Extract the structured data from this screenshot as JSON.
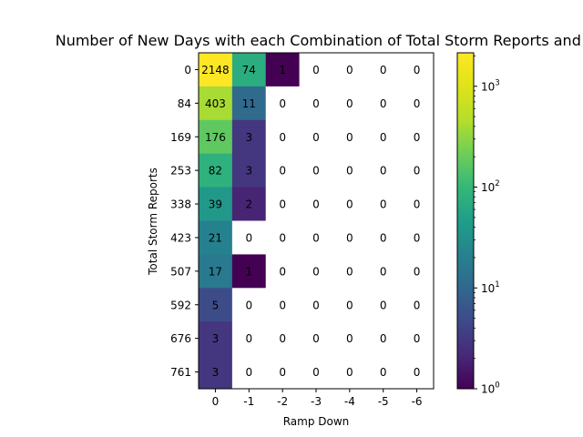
{
  "chart_data": {
    "type": "heatmap",
    "title": "Number of New Days with each Combination of Total Storm Reports and Ramp",
    "xlabel": "Ramp Down",
    "ylabel": "Total Storm Reports",
    "x_categories": [
      "0",
      "-1",
      "-2",
      "-3",
      "-4",
      "-5",
      "-6"
    ],
    "y_categories": [
      "0",
      "84",
      "169",
      "253",
      "338",
      "423",
      "507",
      "592",
      "676",
      "761"
    ],
    "values": [
      [
        2148,
        74,
        1,
        0,
        0,
        0,
        0
      ],
      [
        403,
        11,
        0,
        0,
        0,
        0,
        0
      ],
      [
        176,
        3,
        0,
        0,
        0,
        0,
        0
      ],
      [
        82,
        3,
        0,
        0,
        0,
        0,
        0
      ],
      [
        39,
        2,
        0,
        0,
        0,
        0,
        0
      ],
      [
        21,
        0,
        0,
        0,
        0,
        0,
        0
      ],
      [
        17,
        1,
        0,
        0,
        0,
        0,
        0
      ],
      [
        5,
        0,
        0,
        0,
        0,
        0,
        0
      ],
      [
        3,
        0,
        0,
        0,
        0,
        0,
        0
      ],
      [
        3,
        0,
        0,
        0,
        0,
        0,
        0
      ]
    ],
    "colorbar": {
      "scale": "log",
      "colormap": "viridis",
      "range": [
        1,
        2148
      ],
      "tick_values": [
        1,
        10,
        100,
        1000
      ],
      "tick_labels": [
        "10",
        "10",
        "10",
        "10"
      ],
      "tick_exponents": [
        "0",
        "1",
        "2",
        "3"
      ]
    },
    "zero_cell_color": "#ffffff",
    "grid": false
  }
}
